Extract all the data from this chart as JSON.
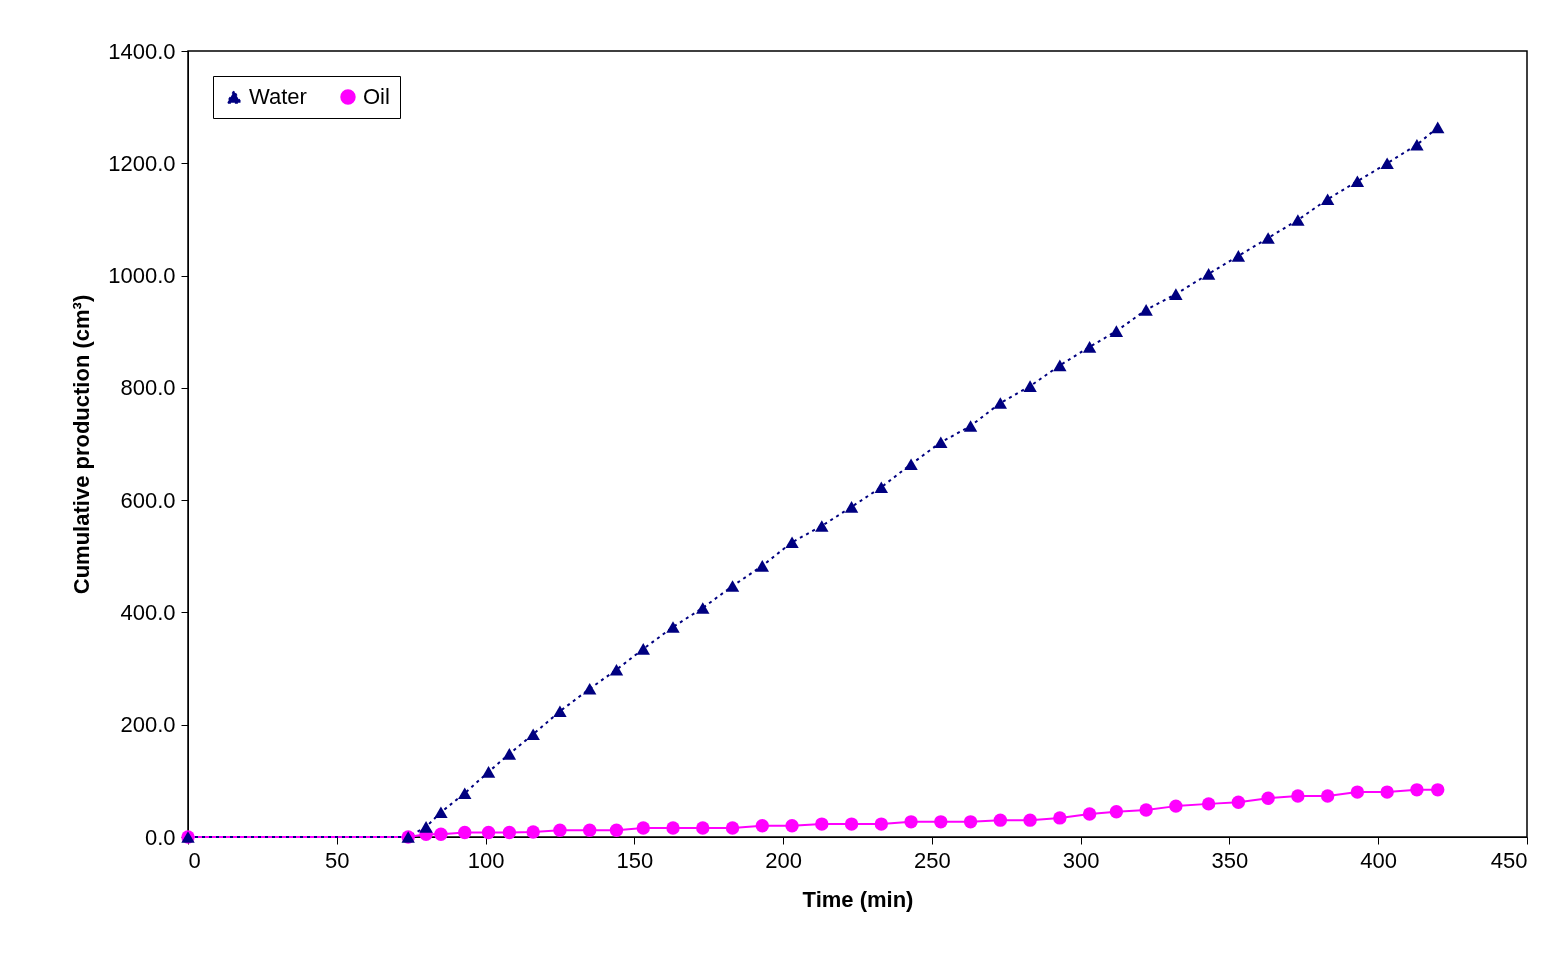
{
  "chart_data": {
    "type": "line",
    "xlabel": "Time (min)",
    "ylabel": "Cumulative production (cm³)",
    "xlim": [
      0,
      450
    ],
    "xticks": [
      0,
      50,
      100,
      150,
      200,
      250,
      300,
      350,
      400,
      450
    ],
    "ylim": [
      0,
      1400
    ],
    "yticks": [
      {
        "value": 0,
        "label": "0.0"
      },
      {
        "value": 200,
        "label": "200.0"
      },
      {
        "value": 400,
        "label": "400.0"
      },
      {
        "value": 600,
        "label": "600.0"
      },
      {
        "value": 800,
        "label": "800.0"
      },
      {
        "value": 1000,
        "label": "1000.0"
      },
      {
        "value": 1200,
        "label": "1200.0"
      },
      {
        "value": 1400,
        "label": "1400.0"
      }
    ],
    "x": [
      0,
      74,
      80,
      85,
      93,
      101,
      108,
      116,
      125,
      135,
      144,
      153,
      163,
      173,
      183,
      193,
      203,
      213,
      223,
      233,
      243,
      253,
      263,
      273,
      283,
      293,
      303,
      312,
      322,
      332,
      343,
      353,
      363,
      373,
      383,
      393,
      403,
      413,
      420
    ],
    "grid": false,
    "legend": "top left",
    "series": [
      {
        "name": "Water",
        "color": "#000080",
        "marker": "triangle",
        "line_style": "dotted",
        "values": [
          0,
          0,
          18,
          44,
          78,
          116,
          148,
          183,
          224,
          264,
          298,
          335,
          374,
          408,
          447,
          483,
          525,
          554,
          588,
          623,
          664,
          703,
          732,
          773,
          803,
          840,
          873,
          901,
          939,
          967,
          1003,
          1035,
          1067,
          1099,
          1136,
          1168,
          1200,
          1233,
          1264
        ]
      },
      {
        "name": "Oil",
        "color": "#ff00ff",
        "marker": "circle",
        "line_style": "solid",
        "values": [
          0,
          0,
          5,
          5,
          8,
          8,
          8,
          9,
          12,
          12,
          12,
          16,
          16,
          16,
          16,
          20,
          20,
          23,
          23,
          23,
          27,
          27,
          27,
          30,
          30,
          34,
          41,
          45,
          48,
          55,
          59,
          62,
          69,
          73,
          73,
          80,
          80,
          84,
          84
        ]
      }
    ]
  }
}
